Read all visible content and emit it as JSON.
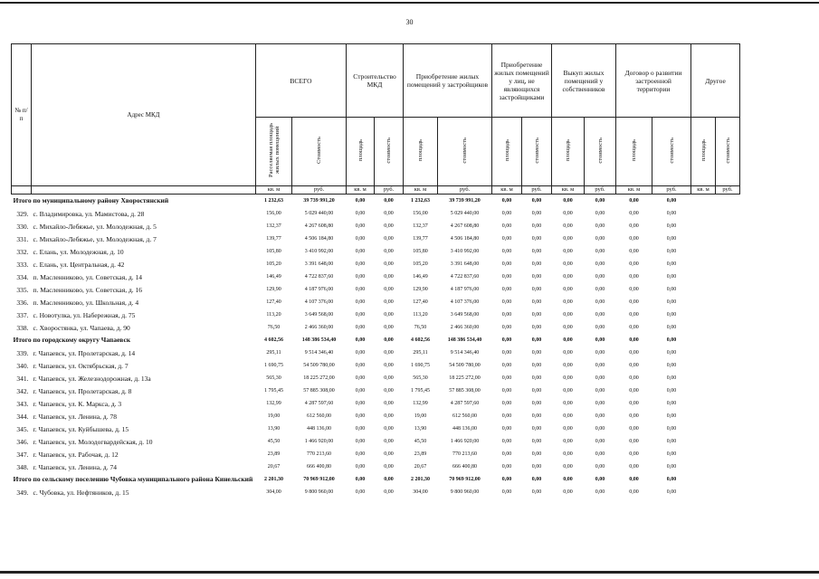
{
  "page_number": "30",
  "header": {
    "num": "№ п/п",
    "address": "Адрес МКД",
    "groups": [
      {
        "title": "ВСЕГО",
        "columns": [
          "Расселяемая площадь жилых помещений",
          "Стоимость"
        ],
        "units": [
          "кв. м",
          "руб."
        ]
      },
      {
        "title": "Строительство МКД",
        "columns": [
          "площадь",
          "стоимость"
        ],
        "units": [
          "кв. м",
          "руб."
        ]
      },
      {
        "title": "Приобретение жилых помещений у застройщиков",
        "columns": [
          "площадь",
          "стоимость"
        ],
        "units": [
          "кв. м",
          "руб."
        ]
      },
      {
        "title": "Приобретение жилых помещений у лиц, не являющихся застройщиками",
        "columns": [
          "площадь",
          "стоимость"
        ],
        "units": [
          "кв. м",
          "руб."
        ]
      },
      {
        "title": "Выкуп жилых помещений у собственников",
        "columns": [
          "площадь",
          "стоимость"
        ],
        "units": [
          "кв. м",
          "руб."
        ]
      },
      {
        "title": "Договор о развитии застроенной территории",
        "columns": [
          "площадь",
          "стоимость"
        ],
        "units": [
          "кв. м",
          "руб."
        ]
      },
      {
        "title": "Другое",
        "columns": [
          "площадь",
          "стоимость"
        ],
        "units": [
          "кв. м",
          "руб."
        ]
      }
    ]
  },
  "rows": [
    {
      "label": "Итого по муниципальному району Хворостянский",
      "values": [
        "1 232,63",
        "39 739 991,20",
        "0,00",
        "0,00",
        "1 232,63",
        "39 739 991,20",
        "0,00",
        "0,00",
        "0,00",
        "0,00",
        "0,00",
        "0,00"
      ]
    },
    {
      "num": "329.",
      "address": "с. Владимировка, ул. Мамистова, д. 28",
      "values": [
        "156,00",
        "5 029 440,00",
        "0,00",
        "0,00",
        "156,00",
        "5 029 440,00",
        "0,00",
        "0,00",
        "0,00",
        "0,00",
        "0,00",
        "0,00"
      ]
    },
    {
      "num": "330.",
      "address": "с. Михайло-Лебяжье, ул. Молодежная, д. 5",
      "values": [
        "132,37",
        "4 267 608,80",
        "0,00",
        "0,00",
        "132,37",
        "4 267 608,80",
        "0,00",
        "0,00",
        "0,00",
        "0,00",
        "0,00",
        "0,00"
      ]
    },
    {
      "num": "331.",
      "address": "с. Михайло-Лебяжье, ул. Молодежная, д. 7",
      "values": [
        "139,77",
        "4 506 184,80",
        "0,00",
        "0,00",
        "139,77",
        "4 506 184,80",
        "0,00",
        "0,00",
        "0,00",
        "0,00",
        "0,00",
        "0,00"
      ]
    },
    {
      "num": "332.",
      "address": "с. Елань, ул. Молодежная, д. 10",
      "values": [
        "105,80",
        "3 410 992,00",
        "0,00",
        "0,00",
        "105,80",
        "3 410 992,00",
        "0,00",
        "0,00",
        "0,00",
        "0,00",
        "0,00",
        "0,00"
      ]
    },
    {
      "num": "333.",
      "address": "с. Елань, ул. Центральная, д. 42",
      "values": [
        "105,20",
        "3 391 648,00",
        "0,00",
        "0,00",
        "105,20",
        "3 391 648,00",
        "0,00",
        "0,00",
        "0,00",
        "0,00",
        "0,00",
        "0,00"
      ]
    },
    {
      "num": "334.",
      "address": "п. Масленниково, ул. Советская, д. 14",
      "values": [
        "146,49",
        "4 722 837,60",
        "0,00",
        "0,00",
        "146,49",
        "4 722 837,60",
        "0,00",
        "0,00",
        "0,00",
        "0,00",
        "0,00",
        "0,00"
      ]
    },
    {
      "num": "335.",
      "address": "п. Масленниково, ул. Советская, д. 16",
      "values": [
        "129,90",
        "4 187 976,00",
        "0,00",
        "0,00",
        "129,90",
        "4 187 976,00",
        "0,00",
        "0,00",
        "0,00",
        "0,00",
        "0,00",
        "0,00"
      ]
    },
    {
      "num": "336.",
      "address": "п. Масленниково, ул. Школьная, д. 4",
      "values": [
        "127,40",
        "4 107 376,00",
        "0,00",
        "0,00",
        "127,40",
        "4 107 376,00",
        "0,00",
        "0,00",
        "0,00",
        "0,00",
        "0,00",
        "0,00"
      ]
    },
    {
      "num": "337.",
      "address": "с. Новотулка, ул. Набережная, д. 75",
      "values": [
        "113,20",
        "3 649 568,00",
        "0,00",
        "0,00",
        "113,20",
        "3 649 568,00",
        "0,00",
        "0,00",
        "0,00",
        "0,00",
        "0,00",
        "0,00"
      ]
    },
    {
      "num": "338.",
      "address": "с. Хворостянка, ул. Чапаева, д. 90",
      "values": [
        "76,50",
        "2 466 360,00",
        "0,00",
        "0,00",
        "76,50",
        "2 466 360,00",
        "0,00",
        "0,00",
        "0,00",
        "0,00",
        "0,00",
        "0,00"
      ]
    },
    {
      "label": "Итого по городскому округу Чапаевск",
      "values": [
        "4 602,56",
        "148 386 534,40",
        "0,00",
        "0,00",
        "4 602,56",
        "148 386 534,40",
        "0,00",
        "0,00",
        "0,00",
        "0,00",
        "0,00",
        "0,00"
      ]
    },
    {
      "num": "339.",
      "address": "г. Чапаевск, ул. Пролетарская, д. 14",
      "values": [
        "295,11",
        "9 514 346,40",
        "0,00",
        "0,00",
        "295,11",
        "9 514 346,40",
        "0,00",
        "0,00",
        "0,00",
        "0,00",
        "0,00",
        "0,00"
      ]
    },
    {
      "num": "340.",
      "address": "г. Чапаевск, ул. Октябрьская, д. 7",
      "values": [
        "1 690,75",
        "54 509 780,00",
        "0,00",
        "0,00",
        "1 690,75",
        "54 509 780,00",
        "0,00",
        "0,00",
        "0,00",
        "0,00",
        "0,00",
        "0,00"
      ]
    },
    {
      "num": "341.",
      "address": "г. Чапаевск, ул. Железнодорожная, д. 13а",
      "values": [
        "565,30",
        "18 225 272,00",
        "0,00",
        "0,00",
        "565,30",
        "18 225 272,00",
        "0,00",
        "0,00",
        "0,00",
        "0,00",
        "0,00",
        "0,00"
      ]
    },
    {
      "num": "342.",
      "address": "г. Чапаевск, ул. Пролетарская, д. 8",
      "values": [
        "1 795,45",
        "57 885 308,00",
        "0,00",
        "0,00",
        "1 795,45",
        "57 885 308,00",
        "0,00",
        "0,00",
        "0,00",
        "0,00",
        "0,00",
        "0,00"
      ]
    },
    {
      "num": "343.",
      "address": "г. Чапаевск, ул. К. Маркса, д. 3",
      "values": [
        "132,99",
        "4 287 597,60",
        "0,00",
        "0,00",
        "132,99",
        "4 287 597,60",
        "0,00",
        "0,00",
        "0,00",
        "0,00",
        "0,00",
        "0,00"
      ]
    },
    {
      "num": "344.",
      "address": "г. Чапаевск, ул. Ленина, д. 78",
      "values": [
        "19,00",
        "612 560,00",
        "0,00",
        "0,00",
        "19,00",
        "612 560,00",
        "0,00",
        "0,00",
        "0,00",
        "0,00",
        "0,00",
        "0,00"
      ]
    },
    {
      "num": "345.",
      "address": "г. Чапаевск, ул. Куйбышева, д. 15",
      "values": [
        "13,90",
        "448 136,00",
        "0,00",
        "0,00",
        "13,90",
        "448 136,00",
        "0,00",
        "0,00",
        "0,00",
        "0,00",
        "0,00",
        "0,00"
      ]
    },
    {
      "num": "346.",
      "address": "г. Чапаевск, ул. Молодогвардейская, д. 10",
      "values": [
        "45,50",
        "1 466 920,00",
        "0,00",
        "0,00",
        "45,50",
        "1 466 920,00",
        "0,00",
        "0,00",
        "0,00",
        "0,00",
        "0,00",
        "0,00"
      ]
    },
    {
      "num": "347.",
      "address": "г. Чапаевск, ул. Рабочая, д. 12",
      "values": [
        "23,89",
        "770 213,60",
        "0,00",
        "0,00",
        "23,89",
        "770 213,60",
        "0,00",
        "0,00",
        "0,00",
        "0,00",
        "0,00",
        "0,00"
      ]
    },
    {
      "num": "348.",
      "address": "г. Чапаевск, ул. Ленина, д. 74",
      "values": [
        "20,67",
        "666 400,80",
        "0,00",
        "0,00",
        "20,67",
        "666 400,80",
        "0,00",
        "0,00",
        "0,00",
        "0,00",
        "0,00",
        "0,00"
      ]
    },
    {
      "label": "Итого по сельскому поселению Чубовка муниципального района Кинельский",
      "values": [
        "2 201,30",
        "70 969 912,00",
        "0,00",
        "0,00",
        "2 201,30",
        "70 969 912,00",
        "0,00",
        "0,00",
        "0,00",
        "0,00",
        "0,00",
        "0,00"
      ]
    },
    {
      "num": "349.",
      "address": "с. Чубовка, ул. Нефтяников, д. 15",
      "values": [
        "304,00",
        "9 800 960,00",
        "0,00",
        "0,00",
        "304,00",
        "9 800 960,00",
        "0,00",
        "0,00",
        "0,00",
        "0,00",
        "0,00",
        "0,00"
      ]
    }
  ]
}
